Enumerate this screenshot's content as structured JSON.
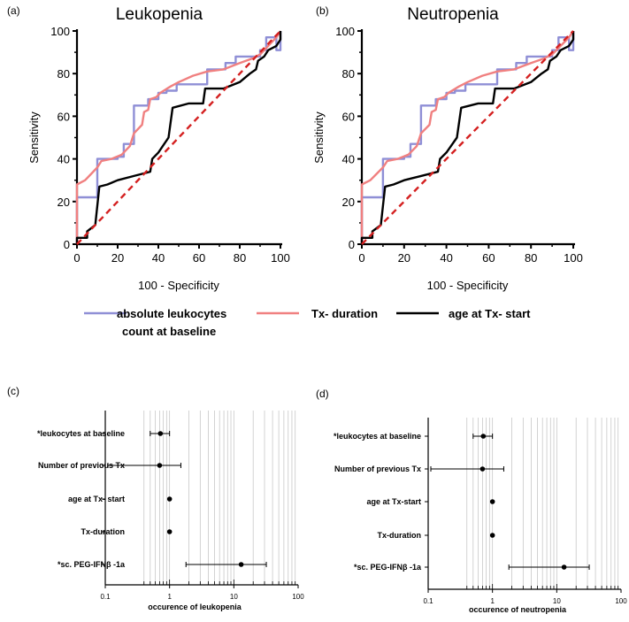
{
  "chart_data": [
    {
      "panel": "(a)",
      "type": "line",
      "title": "Leukopenia",
      "xlabel": "100 - Specificity",
      "ylabel": "Sensitivity",
      "xlim": [
        0,
        100
      ],
      "ylim": [
        0,
        100
      ],
      "xticks": [
        0,
        20,
        40,
        60,
        80,
        100
      ],
      "yticks": [
        0,
        20,
        40,
        60,
        80,
        100
      ],
      "series": [
        {
          "name": "absolute leukocytes count at baseline",
          "color": "#8f8fd6",
          "step": true,
          "points": [
            [
              0,
              0
            ],
            [
              0,
              22
            ],
            [
              10,
              22
            ],
            [
              10,
              40
            ],
            [
              20,
              40
            ],
            [
              20,
              41
            ],
            [
              23,
              41
            ],
            [
              23,
              47
            ],
            [
              28,
              47
            ],
            [
              28,
              65
            ],
            [
              33,
              65
            ],
            [
              33,
              65
            ],
            [
              35,
              65
            ],
            [
              35,
              68
            ],
            [
              40,
              68
            ],
            [
              40,
              71
            ],
            [
              44,
              71
            ],
            [
              44,
              72
            ],
            [
              49,
              72
            ],
            [
              49,
              75
            ],
            [
              64,
              75
            ],
            [
              64,
              82
            ],
            [
              73,
              82
            ],
            [
              73,
              85
            ],
            [
              78,
              85
            ],
            [
              78,
              88
            ],
            [
              90,
              88
            ],
            [
              90,
              91
            ],
            [
              93,
              91
            ],
            [
              93,
              97
            ],
            [
              98,
              97
            ],
            [
              98,
              91
            ],
            [
              100,
              91
            ],
            [
              100,
              100
            ]
          ]
        },
        {
          "name": "Tx- duration",
          "color": "#f08080",
          "step": false,
          "points": [
            [
              0,
              0
            ],
            [
              0,
              28
            ],
            [
              4,
              30
            ],
            [
              7,
              33
            ],
            [
              10,
              36
            ],
            [
              12,
              39
            ],
            [
              17,
              40
            ],
            [
              22,
              42
            ],
            [
              26,
              46
            ],
            [
              28,
              52
            ],
            [
              32,
              56
            ],
            [
              33,
              62
            ],
            [
              35,
              63
            ],
            [
              36,
              68
            ],
            [
              39,
              69
            ],
            [
              41,
              71
            ],
            [
              46,
              74
            ],
            [
              50,
              76
            ],
            [
              57,
              79
            ],
            [
              64,
              81
            ],
            [
              72,
              82
            ],
            [
              80,
              85
            ],
            [
              86,
              87
            ],
            [
              90,
              89
            ],
            [
              93,
              92
            ],
            [
              96,
              95
            ],
            [
              98,
              97
            ],
            [
              100,
              100
            ]
          ]
        },
        {
          "name": "age at Tx- start",
          "color": "#000000",
          "step": false,
          "points": [
            [
              0,
              0
            ],
            [
              0,
              3
            ],
            [
              5,
              3
            ],
            [
              5,
              6
            ],
            [
              9,
              9
            ],
            [
              11,
              27
            ],
            [
              15,
              28
            ],
            [
              20,
              30
            ],
            [
              28,
              32
            ],
            [
              36,
              34
            ],
            [
              37,
              40
            ],
            [
              40,
              43
            ],
            [
              45,
              50
            ],
            [
              47,
              64
            ],
            [
              55,
              66
            ],
            [
              62,
              66
            ],
            [
              63,
              73
            ],
            [
              72,
              73
            ],
            [
              80,
              76
            ],
            [
              85,
              80
            ],
            [
              88,
              82
            ],
            [
              89,
              86
            ],
            [
              92,
              88
            ],
            [
              94,
              91
            ],
            [
              98,
              93
            ],
            [
              100,
              96
            ],
            [
              100,
              100
            ]
          ]
        },
        {
          "name": "reference",
          "color": "#d42020",
          "dashed": true,
          "step": false,
          "points": [
            [
              0,
              0
            ],
            [
              100,
              100
            ]
          ]
        }
      ]
    },
    {
      "panel": "(b)",
      "type": "line",
      "title": "Neutropenia",
      "xlabel": "100 - Specificity",
      "ylabel": "Sensitivity",
      "xlim": [
        0,
        100
      ],
      "ylim": [
        0,
        100
      ],
      "xticks": [
        0,
        20,
        40,
        60,
        80,
        100
      ],
      "yticks": [
        0,
        20,
        40,
        60,
        80,
        100
      ],
      "series": [
        {
          "name": "absolute leukocytes count at baseline",
          "color": "#8f8fd6",
          "step": true,
          "points": [
            [
              0,
              0
            ],
            [
              0,
              22
            ],
            [
              10,
              22
            ],
            [
              10,
              40
            ],
            [
              20,
              40
            ],
            [
              20,
              41
            ],
            [
              23,
              41
            ],
            [
              23,
              47
            ],
            [
              28,
              47
            ],
            [
              28,
              65
            ],
            [
              35,
              65
            ],
            [
              35,
              68
            ],
            [
              40,
              68
            ],
            [
              40,
              71
            ],
            [
              44,
              71
            ],
            [
              44,
              72
            ],
            [
              49,
              72
            ],
            [
              49,
              75
            ],
            [
              64,
              75
            ],
            [
              64,
              82
            ],
            [
              73,
              82
            ],
            [
              73,
              85
            ],
            [
              78,
              85
            ],
            [
              78,
              88
            ],
            [
              90,
              88
            ],
            [
              90,
              91
            ],
            [
              93,
              91
            ],
            [
              93,
              97
            ],
            [
              98,
              97
            ],
            [
              98,
              91
            ],
            [
              100,
              91
            ],
            [
              100,
              100
            ]
          ]
        },
        {
          "name": "Tx- duration",
          "color": "#f08080",
          "step": false,
          "points": [
            [
              0,
              0
            ],
            [
              0,
              28
            ],
            [
              4,
              30
            ],
            [
              7,
              33
            ],
            [
              10,
              36
            ],
            [
              12,
              39
            ],
            [
              17,
              40
            ],
            [
              22,
              42
            ],
            [
              26,
              46
            ],
            [
              28,
              52
            ],
            [
              32,
              56
            ],
            [
              33,
              62
            ],
            [
              35,
              63
            ],
            [
              36,
              68
            ],
            [
              39,
              69
            ],
            [
              41,
              71
            ],
            [
              46,
              74
            ],
            [
              50,
              76
            ],
            [
              57,
              79
            ],
            [
              64,
              81
            ],
            [
              72,
              82
            ],
            [
              80,
              85
            ],
            [
              86,
              87
            ],
            [
              90,
              89
            ],
            [
              93,
              92
            ],
            [
              96,
              95
            ],
            [
              98,
              97
            ],
            [
              100,
              100
            ]
          ]
        },
        {
          "name": "age at Tx- start",
          "color": "#000000",
          "step": false,
          "points": [
            [
              0,
              0
            ],
            [
              0,
              3
            ],
            [
              5,
              3
            ],
            [
              5,
              6
            ],
            [
              9,
              9
            ],
            [
              11,
              27
            ],
            [
              15,
              28
            ],
            [
              20,
              30
            ],
            [
              28,
              32
            ],
            [
              36,
              34
            ],
            [
              37,
              40
            ],
            [
              40,
              43
            ],
            [
              45,
              50
            ],
            [
              47,
              64
            ],
            [
              55,
              66
            ],
            [
              62,
              66
            ],
            [
              63,
              73
            ],
            [
              72,
              73
            ],
            [
              80,
              76
            ],
            [
              85,
              80
            ],
            [
              88,
              82
            ],
            [
              89,
              86
            ],
            [
              92,
              88
            ],
            [
              94,
              91
            ],
            [
              98,
              93
            ],
            [
              100,
              96
            ],
            [
              100,
              100
            ]
          ]
        },
        {
          "name": "reference",
          "color": "#d42020",
          "dashed": true,
          "step": false,
          "points": [
            [
              0,
              0
            ],
            [
              100,
              100
            ]
          ]
        }
      ]
    },
    {
      "panel": "(c)",
      "type": "forest",
      "xscale": "log",
      "xlim": [
        0.1,
        100
      ],
      "xticks": [
        "0.1",
        "1",
        "10",
        "100"
      ],
      "xlabel": "occurence of leukopenia",
      "rows": [
        {
          "label": "*leukocytes at baseline",
          "est": 0.72,
          "lo": 0.5,
          "hi": 1.0
        },
        {
          "label": "Number of previous Tx",
          "est": 0.7,
          "lo": 0.11,
          "hi": 1.5
        },
        {
          "label": "age at Tx- start",
          "est": 1.0,
          "lo": 0.97,
          "hi": 1.03
        },
        {
          "label": "Tx-duration",
          "est": 1.0,
          "lo": 0.99,
          "hi": 1.01
        },
        {
          "label": "*sc. PEG-IFNβ -1a",
          "est": 13,
          "lo": 1.8,
          "hi": 32
        }
      ]
    },
    {
      "panel": "(d)",
      "type": "forest",
      "xscale": "log",
      "xlim": [
        0.1,
        100
      ],
      "xticks": [
        "0.1",
        "1",
        "10",
        "100"
      ],
      "xlabel": "occurence of neutropenia",
      "rows": [
        {
          "label": "*leukocytes at baseline",
          "est": 0.72,
          "lo": 0.5,
          "hi": 1.0
        },
        {
          "label": "Number of previous Tx",
          "est": 0.7,
          "lo": 0.11,
          "hi": 1.5
        },
        {
          "label": "age at Tx-start",
          "est": 1.0,
          "lo": 0.95,
          "hi": 1.06
        },
        {
          "label": "Tx-duration",
          "est": 1.0,
          "lo": 0.99,
          "hi": 1.01
        },
        {
          "label": "*sc. PEG-IFNβ -1a",
          "est": 13,
          "lo": 1.8,
          "hi": 32
        }
      ]
    }
  ],
  "legend": [
    {
      "line1": "absolute leukocytes",
      "line2": "count at baseline",
      "color": "#8f8fd6"
    },
    {
      "line1": "Tx- duration",
      "line2": "",
      "color": "#f08080"
    },
    {
      "line1": "age at Tx- start",
      "line2": "",
      "color": "#000000"
    }
  ]
}
